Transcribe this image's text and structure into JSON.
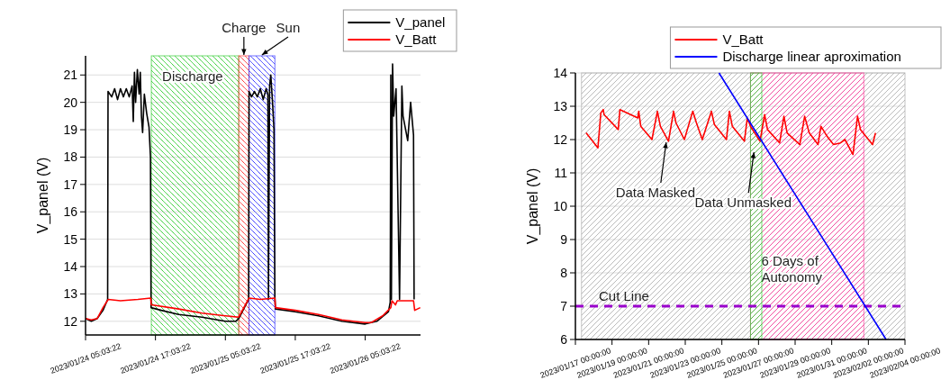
{
  "chart_data": [
    {
      "type": "line",
      "ylabel": "V_panel (V)",
      "xlim": [
        "2023-01-24T05:03:22",
        "2023-01-26T14:33"
      ],
      "ylim": [
        11.5,
        21.7
      ],
      "xticks": [
        {
          "value": "2023-01-24T05:03:22",
          "label": "2023/01/24 05:03:22"
        },
        {
          "value": "2023-01-24T17:03:22",
          "label": "2023/01/24 17:03:22"
        },
        {
          "value": "2023-01-25T05:03:22",
          "label": "2023/01/25 05:03:22"
        },
        {
          "value": "2023-01-25T17:03:22",
          "label": "2023/01/25 17:03:22"
        },
        {
          "value": "2023-01-26T05:03:22",
          "label": "2023/01/26 05:03:22"
        }
      ],
      "yticks": [
        12,
        13,
        14,
        15,
        16,
        17,
        18,
        19,
        20,
        21
      ],
      "grid": "y",
      "legend": "top right",
      "series": [
        {
          "name": "V_panel",
          "color": "#000000",
          "x": [
            "2023-01-24T05:04",
            "2023-01-24T06:03",
            "2023-01-24T07:03",
            "2023-01-24T08:03",
            "2023-01-24T08:51",
            "2023-01-24T08:55",
            "2023-01-24T09:33",
            "2023-01-24T10:03",
            "2023-01-24T10:33",
            "2023-01-24T11:03",
            "2023-01-24T11:33",
            "2023-01-24T12:03",
            "2023-01-24T12:33",
            "2023-01-24T13:03",
            "2023-01-24T13:15",
            "2023-01-24T13:27",
            "2023-01-24T13:39",
            "2023-01-24T13:57",
            "2023-01-24T14:15",
            "2023-01-24T14:27",
            "2023-01-24T14:39",
            "2023-01-24T14:51",
            "2023-01-24T15:09",
            "2023-01-24T15:33",
            "2023-01-24T15:57",
            "2023-01-24T16:12",
            "2023-01-24T16:18",
            "2023-01-24T18:03",
            "2023-01-24T21:03",
            "2023-01-25T01:03",
            "2023-01-25T05:03",
            "2023-01-25T06:51",
            "2023-01-25T07:21",
            "2023-01-25T08:33",
            "2023-01-25T09:03",
            "2023-01-25T09:07",
            "2023-01-25T09:33",
            "2023-01-25T10:03",
            "2023-01-25T10:33",
            "2023-01-25T11:03",
            "2023-01-25T11:33",
            "2023-01-25T12:03",
            "2023-01-25T12:21",
            "2023-01-25T12:27",
            "2023-01-25T12:39",
            "2023-01-25T12:51",
            "2023-01-25T13:09",
            "2023-01-25T13:24",
            "2023-01-25T13:33",
            "2023-01-25T13:39",
            "2023-01-25T17:03",
            "2023-01-25T21:03",
            "2023-01-26T01:03",
            "2023-01-26T05:03",
            "2023-01-26T07:03",
            "2023-01-26T09:03",
            "2023-01-26T09:21",
            "2023-01-26T09:27",
            "2023-01-26T09:33",
            "2023-01-26T09:45",
            "2023-01-26T09:57",
            "2023-01-26T10:21",
            "2023-01-26T10:57",
            "2023-01-26T11:21",
            "2023-01-26T11:33",
            "2023-01-26T12:21",
            "2023-01-26T12:51",
            "2023-01-26T13:21",
            "2023-01-26T13:27"
          ],
          "values": [
            12.1,
            12.0,
            12.1,
            12.4,
            12.8,
            20.4,
            20.2,
            20.5,
            20.1,
            20.5,
            20.2,
            20.5,
            20.2,
            20.6,
            19.3,
            21.1,
            20.0,
            21.2,
            20.3,
            21.1,
            19.5,
            18.9,
            20.3,
            19.6,
            19.1,
            18.0,
            12.5,
            12.4,
            12.25,
            12.15,
            12.0,
            12.0,
            12.1,
            12.6,
            12.8,
            20.4,
            20.2,
            20.4,
            20.2,
            20.5,
            20.1,
            20.5,
            20.3,
            12.8,
            20.6,
            21.0,
            20.0,
            19.0,
            12.9,
            12.45,
            12.35,
            12.2,
            12.0,
            11.9,
            12.0,
            12.35,
            12.7,
            21.0,
            12.8,
            21.4,
            19.5,
            20.5,
            12.8,
            20.6,
            19.5,
            18.6,
            20.0,
            18.8,
            12.8
          ]
        },
        {
          "name": "V_Batt",
          "color": "#ff0000",
          "x": [
            "2023-01-24T05:04",
            "2023-01-24T06:03",
            "2023-01-24T07:03",
            "2023-01-24T08:03",
            "2023-01-24T08:57",
            "2023-01-24T11:03",
            "2023-01-24T14:03",
            "2023-01-24T16:15",
            "2023-01-24T16:21",
            "2023-01-24T21:03",
            "2023-01-25T01:03",
            "2023-01-25T05:03",
            "2023-01-25T07:21",
            "2023-01-25T09:07",
            "2023-01-25T11:03",
            "2023-01-25T13:33",
            "2023-01-25T13:39",
            "2023-01-25T17:03",
            "2023-01-25T21:03",
            "2023-01-26T01:03",
            "2023-01-26T05:03",
            "2023-01-26T06:03",
            "2023-01-26T08:03",
            "2023-01-26T09:27",
            "2023-01-26T09:39",
            "2023-01-26T10:15",
            "2023-01-26T10:33",
            "2023-01-26T13:21",
            "2023-01-26T13:33",
            "2023-01-26T14:30"
          ],
          "values": [
            12.1,
            12.05,
            12.1,
            12.5,
            12.8,
            12.75,
            12.8,
            12.85,
            12.6,
            12.45,
            12.3,
            12.2,
            12.15,
            12.85,
            12.8,
            12.85,
            12.5,
            12.4,
            12.25,
            12.05,
            11.95,
            11.95,
            12.2,
            12.5,
            12.75,
            12.6,
            12.75,
            12.75,
            12.4,
            12.5
          ]
        }
      ],
      "bands": [
        {
          "axis": "x",
          "from": "2023-01-24T16:21",
          "to": "2023-01-25T07:21",
          "label": "Discharge",
          "color": "#33cc33"
        },
        {
          "axis": "x",
          "from": "2023-01-25T07:21",
          "to": "2023-01-25T09:07",
          "label": "Charge",
          "color": "#ff3333"
        },
        {
          "axis": "x",
          "from": "2023-01-25T09:07",
          "to": "2023-01-25T13:33",
          "label": "Sun",
          "color": "#3333ff"
        }
      ]
    },
    {
      "type": "line",
      "ylabel": "V_panel (V)",
      "xlim": [
        "2023-01-17",
        "2023-02-04"
      ],
      "ylim": [
        6,
        14
      ],
      "xticks": [
        {
          "value": "2023-01-17",
          "label": "2023/01/17 00:00:00"
        },
        {
          "value": "2023-01-19",
          "label": "2023/01/19 00:00:00"
        },
        {
          "value": "2023-01-21",
          "label": "2023/01/21 00:00:00"
        },
        {
          "value": "2023-01-23",
          "label": "2023/01/23 00:00:00"
        },
        {
          "value": "2023-01-25",
          "label": "2023/01/25 00:00:00"
        },
        {
          "value": "2023-01-27",
          "label": "2023/01/27 00:00:00"
        },
        {
          "value": "2023-01-29",
          "label": "2023/01/29 00:00:00"
        },
        {
          "value": "2023-01-31",
          "label": "2023/01/31 00:00:00"
        },
        {
          "value": "2023-02-02",
          "label": "2023/02/02 00:00:00"
        },
        {
          "value": "2023-02-04",
          "label": "2023/02/04 00:00:00"
        }
      ],
      "yticks": [
        6,
        7,
        8,
        9,
        10,
        11,
        12,
        13,
        14
      ],
      "grid": "y",
      "legend": "top right",
      "series": [
        {
          "name": "V_Batt",
          "color": "#ff0000",
          "x": [
            "2023-01-17T14:00",
            "2023-01-17T21:00",
            "2023-01-18T05:30",
            "2023-01-18T09:20",
            "2023-01-18T12:30",
            "2023-01-18T13:30",
            "2023-01-19T08:10",
            "2023-01-19T10:20",
            "2023-01-20T09:50",
            "2023-01-20T11:00",
            "2023-01-20T13:40",
            "2023-01-21T04:20",
            "2023-01-21T11:30",
            "2023-01-21T15:20",
            "2023-01-22T02:00",
            "2023-01-22T08:40",
            "2023-01-22T11:50",
            "2023-01-22T22:50",
            "2023-01-23T09:50",
            "2023-01-23T14:40",
            "2023-01-23T22:20",
            "2023-01-24T10:20",
            "2023-01-24T14:10",
            "2023-01-25T06:00",
            "2023-01-25T09:50",
            "2023-01-25T13:40",
            "2023-01-26T05:30",
            "2023-01-26T09:20",
            "2023-01-26T13:30",
            "2023-01-27T02:00",
            "2023-01-27T08:00",
            "2023-01-27T11:50",
            "2023-01-28T03:40",
            "2023-01-28T09:20",
            "2023-01-28T13:30",
            "2023-01-29T06:10",
            "2023-01-29T12:30",
            "2023-01-29T18:30",
            "2023-01-30T06:00",
            "2023-01-30T09:50",
            "2023-01-30T17:50",
            "2023-01-31T02:20",
            "2023-01-31T11:30",
            "2023-01-31T17:20",
            "2023-02-01T03:50",
            "2023-02-01T09:50",
            "2023-02-01T13:40",
            "2023-02-02T05:30",
            "2023-02-02T09:20"
          ],
          "values": [
            12.2,
            12.0,
            11.75,
            12.8,
            12.9,
            12.75,
            12.3,
            12.9,
            12.65,
            12.85,
            12.4,
            12.0,
            12.85,
            12.4,
            11.95,
            12.85,
            12.5,
            12.0,
            12.85,
            12.5,
            12.0,
            12.85,
            12.45,
            12.0,
            12.85,
            12.4,
            11.95,
            12.65,
            12.4,
            11.95,
            12.75,
            12.3,
            11.9,
            12.7,
            12.2,
            11.85,
            12.7,
            12.2,
            11.85,
            12.4,
            12.1,
            11.85,
            11.9,
            12.0,
            11.55,
            12.7,
            12.3,
            11.85,
            12.2
          ]
        },
        {
          "name": "Discharge linear aproximation",
          "color": "#0000ff",
          "x": [
            "2023-01-24T20:10",
            "2023-02-02T23:15"
          ],
          "values": [
            14,
            6
          ]
        }
      ],
      "bands": [
        {
          "axis": "x",
          "from": "2023-01-17T08:00",
          "to": "2023-02-04",
          "color": "#aaaaaa"
        },
        {
          "axis": "x",
          "from": "2023-01-26T13:30",
          "to": "2023-02-01T18:00",
          "label": "6 Days of Autonomy",
          "color": "#ff3399"
        },
        {
          "axis": "x",
          "from": "2023-01-26T13:30",
          "to": "2023-01-27T04:20",
          "color": "#33cc33"
        }
      ],
      "ref_lines": [
        {
          "axis": "y",
          "value": 7,
          "label": "Cut Line",
          "color": "#9900cc",
          "line_style": "dashed"
        }
      ],
      "annotations": [
        {
          "text": "Data Masked",
          "x": "2023-01-21T23:00",
          "y": 12.0
        },
        {
          "text": "Data Unmasked",
          "x": "2023-01-26T18:00",
          "y": 11.7
        }
      ]
    }
  ]
}
